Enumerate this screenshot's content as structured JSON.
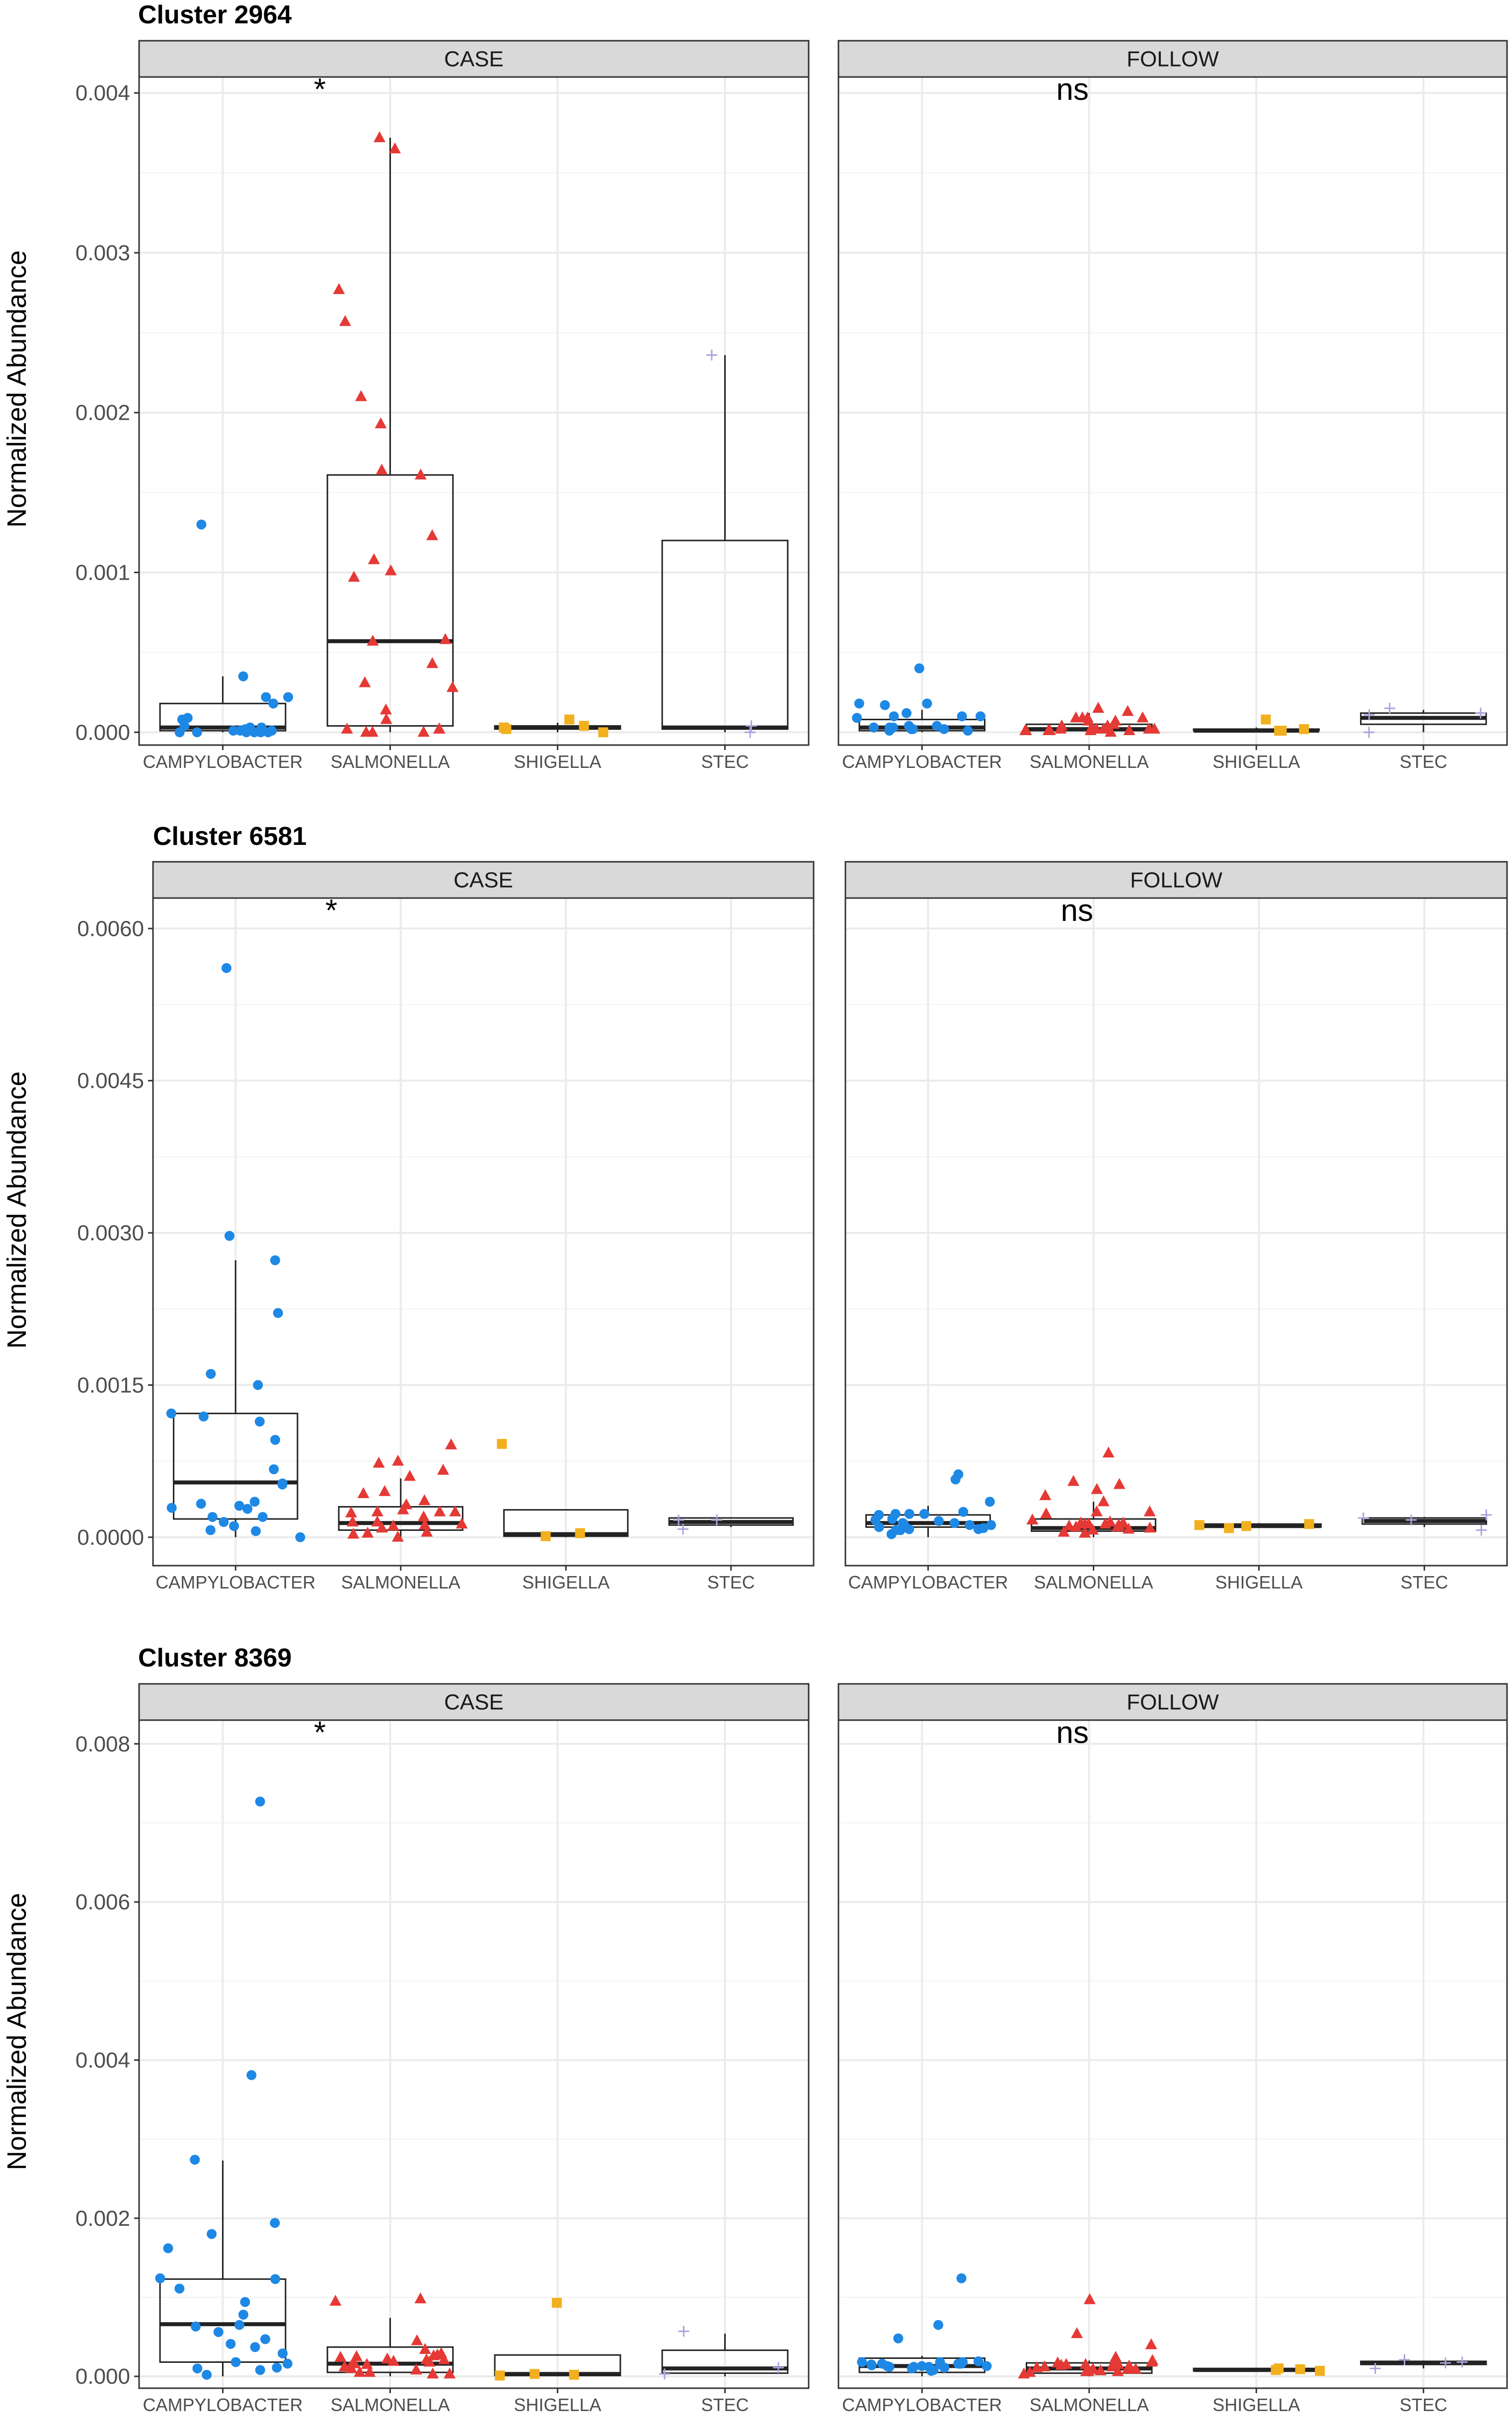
{
  "chart_data": [
    {
      "type": "boxplot",
      "title": "Cluster 2964",
      "ylabel": "Normalized Abundance",
      "ylim": [
        -8e-05,
        0.0041
      ],
      "yticks": [
        0,
        0.001,
        0.002,
        0.003,
        0.004
      ],
      "ytick_labels": [
        "0.000",
        "0.001",
        "0.002",
        "0.003",
        "0.004"
      ],
      "categories": [
        "CAMPYLOBACTER",
        "SALMONELLA",
        "SHIGELLA",
        "STEC"
      ],
      "panels": [
        {
          "name": "CASE",
          "significance": "*",
          "groups": [
            {
              "q1": 1e-05,
              "median": 3e-05,
              "q3": 0.00018,
              "whisker_low": 0.0,
              "whisker_high": 0.00035,
              "points": [
                0.00035,
                0.0,
                1e-05,
                0.00022,
                0.0,
                2e-05,
                0.0,
                0.00018,
                3e-05,
                0.00022,
                0.0,
                0.0013,
                3e-05,
                8e-05,
                1e-05,
                9e-05,
                4e-05,
                0.0,
                1e-05,
                0.0
              ]
            },
            {
              "q1": 4e-05,
              "median": 0.00057,
              "q3": 0.00161,
              "whisker_low": 0.0,
              "whisker_high": 0.00372,
              "points": [
                0.00277,
                8e-05,
                0.00161,
                0.0,
                0.0021,
                0.00057,
                0.00058,
                2e-05,
                0.00372,
                0.00193,
                0.00043,
                2e-05,
                0.00257,
                0.0,
                0.00108,
                0.00101,
                0.00028,
                0.00014,
                0.0,
                0.00097,
                0.00164,
                2e-05,
                0.00123,
                0.00031,
                0.00365
              ]
            },
            {
              "q1": 2e-05,
              "median": 3e-05,
              "q3": 4e-05,
              "whisker_low": 0.0,
              "whisker_high": 6e-05,
              "points": [
                0.0,
                4e-05,
                2e-05,
                8e-05,
                3e-05
              ]
            },
            {
              "q1": 2e-05,
              "median": 3e-05,
              "q3": 0.0012,
              "whisker_low": 0.0,
              "whisker_high": 0.00236,
              "points": [
                0.0,
                0.00236,
                4e-05
              ]
            }
          ]
        },
        {
          "name": "FOLLOW",
          "significance": "ns",
          "groups": [
            {
              "q1": 1e-05,
              "median": 3e-05,
              "q3": 8e-05,
              "whisker_low": 0.0,
              "whisker_high": 0.00014,
              "points": [
                3e-05,
                0.00012,
                4e-05,
                2e-05,
                0.0001,
                2e-05,
                0.00018,
                1e-05,
                3e-05,
                2e-05,
                9e-05,
                0.0001,
                3e-05,
                2e-05,
                0.00017,
                0.0001,
                0.0004,
                0.00018,
                1e-05,
                4e-05
              ]
            },
            {
              "q1": 1e-05,
              "median": 2e-05,
              "q3": 5e-05,
              "whisker_low": 0.0,
              "whisker_high": 0.00012,
              "points": [
                7e-05,
                1e-05,
                2e-05,
                9e-05,
                1e-05,
                0.0,
                4e-05,
                9e-05,
                2e-05,
                1e-05,
                3e-05,
                9e-05,
                2e-05,
                1e-05,
                4e-05,
                2e-05,
                9e-05,
                1e-05,
                5e-05,
                2e-05,
                0.00013,
                2e-05,
                7e-05,
                1e-05,
                0.00015
              ]
            },
            {
              "q1": 1e-05,
              "median": 1e-05,
              "q3": 2e-05,
              "whisker_low": 0.0,
              "whisker_high": 3e-05,
              "points": [
                1e-05,
                2e-05,
                8e-05,
                1e-05
              ]
            },
            {
              "q1": 5e-05,
              "median": 9e-05,
              "q3": 0.00012,
              "whisker_low": 0.0,
              "whisker_high": 0.00014,
              "points": [
                0.0,
                0.00012,
                0.00011,
                0.00015
              ]
            }
          ]
        }
      ]
    },
    {
      "type": "boxplot",
      "title": "Cluster 6581",
      "ylabel": "Normalized Abundance",
      "ylim": [
        -0.00028,
        0.0063
      ],
      "yticks": [
        0,
        0.0015,
        0.003,
        0.0045,
        0.006
      ],
      "ytick_labels": [
        "0.0000",
        "0.0015",
        "0.0030",
        "0.0045",
        "0.0060"
      ],
      "categories": [
        "CAMPYLOBACTER",
        "SALMONELLA",
        "SHIGELLA",
        "STEC"
      ],
      "panels": [
        {
          "name": "CASE",
          "significance": "*",
          "groups": [
            {
              "q1": 0.00018,
              "median": 0.00054,
              "q3": 0.00122,
              "whisker_low": 0.0,
              "whisker_high": 0.00273,
              "points": [
                0.00297,
                0.00273,
                0.00161,
                0.00053,
                0.00033,
                0.00096,
                0.00015,
                0.00561,
                0.00029,
                0.0002,
                0.0002,
                0.00221,
                0.00067,
                0.0,
                0.00028,
                0.00052,
                7e-05,
                0.00122,
                0.00119,
                0.00031,
                0.00035,
                0.00114,
                0.0015,
                0.00011,
                6e-05
              ]
            },
            {
              "q1": 7e-05,
              "median": 0.00014,
              "q3": 0.0003,
              "whisker_low": 0.0,
              "whisker_high": 0.00058,
              "points": [
                0.00025,
                0.00036,
                0.00015,
                0.0006,
                0.00043,
                0.0002,
                0.00011,
                0.00025,
                0.00012,
                9e-05,
                0.00045,
                4e-05,
                0.00073,
                0.00024,
                0.00032,
                0.00013,
                5e-05,
                0.00027,
                0.00066,
                0.00025,
                0.00015,
                0.0,
                0.00075,
                3e-05,
                0.00091
              ]
            },
            {
              "q1": 1e-05,
              "median": 3e-05,
              "q3": 0.00027,
              "whisker_low": 0.0,
              "whisker_high": 0.00027,
              "points": [
                1e-05,
                0.00092,
                4e-05
              ]
            },
            {
              "q1": 0.00012,
              "median": 0.00015,
              "q3": 0.00019,
              "whisker_low": 0.0001,
              "whisker_high": 0.00019,
              "points": [
                0.00017,
                0.00017,
                8e-05
              ]
            }
          ]
        },
        {
          "name": "FOLLOW",
          "significance": "ns",
          "groups": [
            {
              "q1": 0.0001,
              "median": 0.00014,
              "q3": 0.00022,
              "whisker_low": 0.0,
              "whisker_high": 0.00031,
              "points": [
                0.00022,
                0.0001,
                0.00025,
                0.00057,
                0.00014,
                8e-05,
                3e-05,
                0.00023,
                9e-05,
                0.00013,
                0.00017,
                8e-05,
                0.00023,
                0.00012,
                0.00018,
                0.00023,
                0.00016,
                0.00035,
                7e-05,
                0.00062,
                0.00014,
                0.00012,
                7e-05
              ]
            },
            {
              "q1": 6e-05,
              "median": 9e-05,
              "q3": 0.00018,
              "whisker_low": 0.0,
              "whisker_high": 0.00035,
              "points": [
                0.00025,
                0.00014,
                0.00047,
                0.00012,
                0.0001,
                5e-05,
                0.00023,
                8e-05,
                0.00017,
                0.00041,
                7e-05,
                0.00013,
                0.0001,
                0.00052,
                0.00015,
                0.00035,
                0.00055,
                0.00013,
                4e-05,
                0.00013,
                0.00011,
                9e-05,
                0.00025,
                0.00083,
                0.00014
              ]
            },
            {
              "q1": 0.0001,
              "median": 0.00011,
              "q3": 0.00013,
              "whisker_low": 0.0001,
              "whisker_high": 0.00014,
              "points": [
                0.00013,
                9e-05,
                0.00012,
                0.00011
              ]
            },
            {
              "q1": 0.00013,
              "median": 0.00016,
              "q3": 0.00019,
              "whisker_low": 0.0001,
              "whisker_high": 0.0002,
              "points": [
                0.00017,
                7e-05,
                0.00022,
                0.00019
              ]
            }
          ]
        }
      ]
    },
    {
      "type": "boxplot",
      "title": "Cluster 8369",
      "ylabel": "Normalized Abundance",
      "ylim": [
        -0.00015,
        0.0083
      ],
      "yticks": [
        0,
        0.002,
        0.004,
        0.006,
        0.008
      ],
      "ytick_labels": [
        "0.000",
        "0.002",
        "0.004",
        "0.006",
        "0.008"
      ],
      "categories": [
        "CAMPYLOBACTER",
        "SALMONELLA",
        "SHIGELLA",
        "STEC"
      ],
      "panels": [
        {
          "name": "CASE",
          "significance": "*",
          "groups": [
            {
              "q1": 0.00018,
              "median": 0.00066,
              "q3": 0.00123,
              "whisker_low": 0.0,
              "whisker_high": 0.00273,
              "points": [
                0.0018,
                2e-05,
                0.00111,
                0.00123,
                0.00063,
                0.00029,
                0.00381,
                0.00016,
                8e-05,
                0.00056,
                0.00094,
                0.00194,
                0.0001,
                0.00727,
                0.00018,
                0.00065,
                0.00041,
                0.00162,
                0.00011,
                0.00037,
                0.00124,
                0.00078,
                0.00274,
                0.00047
              ]
            },
            {
              "q1": 5e-05,
              "median": 0.00016,
              "q3": 0.00037,
              "whisker_low": 0.0,
              "whisker_high": 0.00074,
              "points": [
                0.00098,
                3e-05,
                0.00019,
                0.00029,
                0.0001,
                0.00024,
                0.00016,
                0.00021,
                0.00018,
                5e-05,
                0.00015,
                0.00027,
                0.00021,
                8e-05,
                0.00045,
                0.00012,
                0.00026,
                3e-05,
                0.00034,
                0.00017,
                0.00012,
                0.00095,
                0.00025,
                5e-05,
                0.00022
              ]
            },
            {
              "q1": 1e-05,
              "median": 3e-05,
              "q3": 0.00027,
              "whisker_low": 0.0,
              "whisker_high": 0.00027,
              "points": [
                0.00093,
                1e-05,
                3e-05,
                2e-05
              ]
            },
            {
              "q1": 4e-05,
              "median": 0.0001,
              "q3": 0.00033,
              "whisker_low": 0.0,
              "whisker_high": 0.00054,
              "points": [
                0.00011,
                0.00057,
                3e-05
              ]
            }
          ]
        },
        {
          "name": "FOLLOW",
          "significance": "ns",
          "groups": [
            {
              "q1": 5e-05,
              "median": 0.00013,
              "q3": 0.00023,
              "whisker_low": 0.0,
              "whisker_high": 0.00026,
              "points": [
                0.00012,
                0.00016,
                0.00013,
                0.00018,
                7e-05,
                0.00015,
                0.00018,
                0.00012,
                0.00015,
                0.00065,
                0.00048,
                0.00014,
                8e-05,
                0.00012,
                0.00016,
                0.0001,
                0.00018,
                0.00013,
                0.00016,
                0.00124,
                0.00013,
                0.00016,
                0.00011,
                0.00019
              ]
            },
            {
              "q1": 4e-05,
              "median": 0.0001,
              "q3": 0.00017,
              "whisker_low": 0.0,
              "whisker_high": 0.0002,
              "points": [
                0.00054,
                0.00015,
                0.0004,
                0.00012,
                6e-05,
                0.00017,
                9e-05,
                0.00097,
                0.00024,
                6e-05,
                0.00014,
                0.00017,
                5e-05,
                0.00012,
                9e-05,
                6e-05,
                0.00015,
                3e-05,
                0.00011,
                0.0002,
                0.00013,
                7e-05,
                0.00018,
                9e-05,
                0.00015
              ]
            },
            {
              "q1": 7e-05,
              "median": 8e-05,
              "q3": 0.0001,
              "whisker_low": 7e-05,
              "whisker_high": 0.0001,
              "points": [
                9e-05,
                7e-05,
                8e-05,
                0.0001
              ]
            },
            {
              "q1": 0.00015,
              "median": 0.00017,
              "q3": 0.00019,
              "whisker_low": 0.0001,
              "whisker_high": 0.0002,
              "points": [
                0.0001,
                0.00018,
                0.00021,
                0.00017
              ]
            }
          ]
        }
      ]
    }
  ],
  "colors": {
    "campylobacter": "#1E88E5",
    "salmonella": "#E53935",
    "shigella": "#F2B01E",
    "stec": "#A9A4DD",
    "strip_fill": "#D9D9D9",
    "panel_border": "#333333",
    "grid": "#EBEBEB"
  },
  "marker_shapes": [
    "circle",
    "triangle",
    "square",
    "plus"
  ]
}
